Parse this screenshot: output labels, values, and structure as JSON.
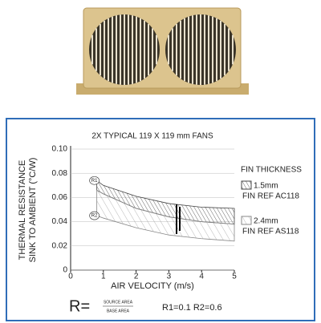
{
  "chart_data": {
    "type": "band",
    "title": "2X TYPICAL 119 X 119 mm FANS",
    "y_label_lines": [
      "THERMAL RESISTANCE",
      "SINK TO AMBIENT (°C/W)"
    ],
    "x_label": "AIR VELOCITY (m/s)",
    "x": [
      0.8,
      1,
      2,
      3,
      4,
      5
    ],
    "series": [
      {
        "name": "1.5mm",
        "reference": "FIN REF AC118",
        "color": "#444444",
        "upper": [
          0.074,
          0.07,
          0.061,
          0.055,
          0.052,
          0.051
        ],
        "lower": [
          0.066,
          0.063,
          0.051,
          0.044,
          0.04,
          0.038
        ]
      },
      {
        "name": "2.4mm",
        "reference": "FIN REF AS118",
        "color": "#888888",
        "upper": [
          0.066,
          0.063,
          0.051,
          0.044,
          0.04,
          0.038
        ],
        "lower": [
          0.045,
          0.043,
          0.035,
          0.029,
          0.026,
          0.024
        ]
      }
    ],
    "curve_labels": [
      "R1",
      "R2"
    ],
    "legend_title": "FIN THICKNESS",
    "formula": {
      "lhs": "R=",
      "numerator": "SOURCE AREA",
      "denominator": "BASE AREA",
      "values": "R1=0.1  R2=0.6"
    },
    "xlim": [
      0,
      5
    ],
    "xticks": [
      0,
      1,
      2,
      3,
      4,
      5
    ],
    "ylim": [
      0,
      0.1
    ],
    "yticks": [
      0,
      0.02,
      0.04,
      0.06,
      0.08,
      {
        "value": 0.1,
        "label": "0.10"
      }
    ]
  }
}
